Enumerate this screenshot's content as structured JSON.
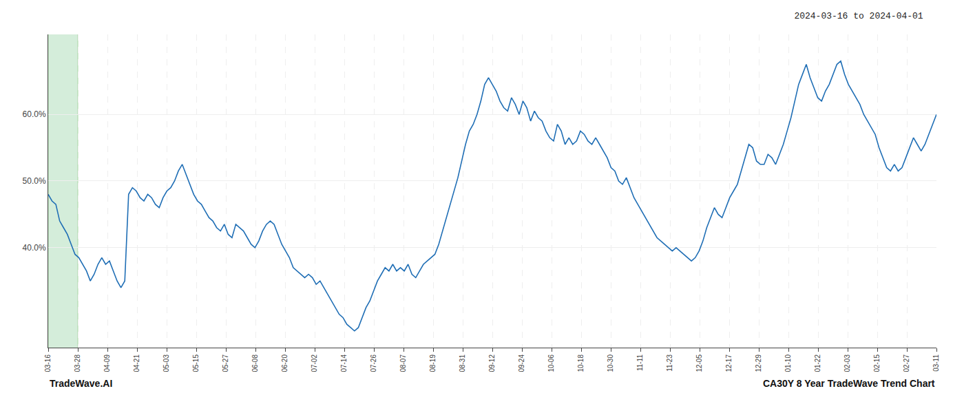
{
  "chart_data": {
    "type": "line",
    "title": "2024-03-16 to 2024-04-01",
    "annotations": [
      "TradeWave.AI",
      "CA30Y 8 Year TradeWave Trend Chart"
    ],
    "color": "#1f6eb5",
    "grid": true,
    "highlight": {
      "x0": 0,
      "x1": 7.733333333333333,
      "color": "#d4edda",
      "edge_color": "#a8d5a2"
    },
    "xlim": [
      0,
      232
    ],
    "xticks": [
      {
        "value": 0,
        "label": "03-16"
      },
      {
        "value": 7.733333333333333,
        "label": "03-28"
      },
      {
        "value": 15.466666666666667,
        "label": "04-09"
      },
      {
        "value": 23.2,
        "label": "04-21"
      },
      {
        "value": 30.933333333333334,
        "label": "05-03"
      },
      {
        "value": 38.666666666666664,
        "label": "05-15"
      },
      {
        "value": 46.4,
        "label": "05-27"
      },
      {
        "value": 54.13333333333333,
        "label": "06-08"
      },
      {
        "value": 61.86666666666667,
        "label": "06-20"
      },
      {
        "value": 69.6,
        "label": "07-02"
      },
      {
        "value": 77.33333333333333,
        "label": "07-14"
      },
      {
        "value": 85.06666666666666,
        "label": "07-26"
      },
      {
        "value": 92.8,
        "label": "08-07"
      },
      {
        "value": 100.53333333333333,
        "label": "08-19"
      },
      {
        "value": 108.26666666666667,
        "label": "08-31"
      },
      {
        "value": 116,
        "label": "09-12"
      },
      {
        "value": 123.73333333333333,
        "label": "09-24"
      },
      {
        "value": 131.46666666666667,
        "label": "10-06"
      },
      {
        "value": 139.2,
        "label": "10-18"
      },
      {
        "value": 146.93333333333334,
        "label": "10-30"
      },
      {
        "value": 154.66666666666666,
        "label": "11-11"
      },
      {
        "value": 162.4,
        "label": "11-23"
      },
      {
        "value": 170.13333333333333,
        "label": "12-05"
      },
      {
        "value": 177.86666666666667,
        "label": "12-17"
      },
      {
        "value": 185.6,
        "label": "12-29"
      },
      {
        "value": 193.33333333333334,
        "label": "01-10"
      },
      {
        "value": 201.06666666666666,
        "label": "01-22"
      },
      {
        "value": 208.8,
        "label": "02-03"
      },
      {
        "value": 216.53333333333333,
        "label": "02-15"
      },
      {
        "value": 224.26666666666668,
        "label": "02-27"
      },
      {
        "value": 232,
        "label": "03-11"
      }
    ],
    "ylim": [
      25,
      72
    ],
    "yticks": [
      {
        "value": 40.0,
        "label": "40.0%"
      },
      {
        "value": 50.0,
        "label": "50.0%"
      },
      {
        "value": 60.0,
        "label": "60.0%"
      }
    ],
    "values": [
      48.0,
      47.0,
      46.5,
      44.0,
      43.0,
      42.0,
      40.5,
      39.0,
      38.5,
      37.5,
      36.5,
      35.0,
      36.0,
      37.5,
      38.5,
      37.5,
      38.0,
      36.5,
      35.0,
      34.0,
      35.0,
      48.0,
      49.0,
      48.5,
      47.5,
      47.0,
      48.0,
      47.5,
      46.5,
      46.0,
      47.5,
      48.5,
      49.0,
      50.0,
      51.5,
      52.5,
      51.0,
      49.5,
      48.0,
      47.0,
      46.5,
      45.5,
      44.5,
      44.0,
      43.0,
      42.5,
      43.5,
      42.0,
      41.5,
      43.5,
      43.0,
      42.5,
      41.5,
      40.5,
      40.0,
      41.0,
      42.5,
      43.5,
      44.0,
      43.5,
      42.0,
      40.5,
      39.5,
      38.5,
      37.0,
      36.5,
      36.0,
      35.5,
      36.0,
      35.5,
      34.5,
      35.0,
      34.0,
      33.0,
      32.0,
      31.0,
      30.0,
      29.5,
      28.5,
      28.0,
      27.5,
      28.0,
      29.5,
      31.0,
      32.0,
      33.5,
      35.0,
      36.0,
      37.0,
      36.5,
      37.5,
      36.5,
      37.0,
      36.5,
      37.5,
      36.0,
      35.5,
      36.5,
      37.5,
      38.0,
      38.5,
      39.0,
      40.5,
      42.5,
      44.5,
      46.5,
      48.5,
      50.5,
      53.0,
      55.5,
      57.5,
      58.5,
      60.0,
      62.0,
      64.5,
      65.5,
      64.5,
      63.5,
      62.0,
      61.0,
      60.5,
      62.5,
      61.5,
      60.0,
      62.0,
      61.0,
      59.0,
      60.5,
      59.5,
      59.0,
      57.5,
      56.5,
      56.0,
      58.5,
      57.5,
      55.5,
      56.5,
      55.5,
      56.0,
      57.5,
      57.0,
      56.0,
      55.5,
      56.5,
      55.5,
      54.5,
      53.5,
      52.0,
      51.5,
      50.0,
      49.5,
      50.5,
      49.0,
      47.5,
      46.5,
      45.5,
      44.5,
      43.5,
      42.5,
      41.5,
      41.0,
      40.5,
      40.0,
      39.5,
      40.0,
      39.5,
      39.0,
      38.5,
      38.0,
      38.5,
      39.5,
      41.0,
      43.0,
      44.5,
      46.0,
      45.0,
      44.5,
      46.0,
      47.5,
      48.5,
      49.5,
      51.5,
      53.5,
      55.5,
      55.0,
      53.0,
      52.5,
      52.5,
      54.0,
      53.5,
      52.5,
      54.0,
      55.5,
      57.5,
      59.5,
      62.0,
      64.5,
      66.0,
      67.5,
      65.5,
      64.0,
      62.5,
      62.0,
      63.5,
      64.5,
      66.0,
      67.5,
      68.0,
      66.0,
      64.5,
      63.5,
      62.5,
      61.5,
      60.0,
      59.0,
      58.0,
      57.0,
      55.0,
      53.5,
      52.0,
      51.5,
      52.5,
      51.5,
      52.0,
      53.5,
      55.0,
      56.5,
      55.5,
      54.5,
      55.5,
      57.0,
      58.5,
      60.0
    ]
  }
}
